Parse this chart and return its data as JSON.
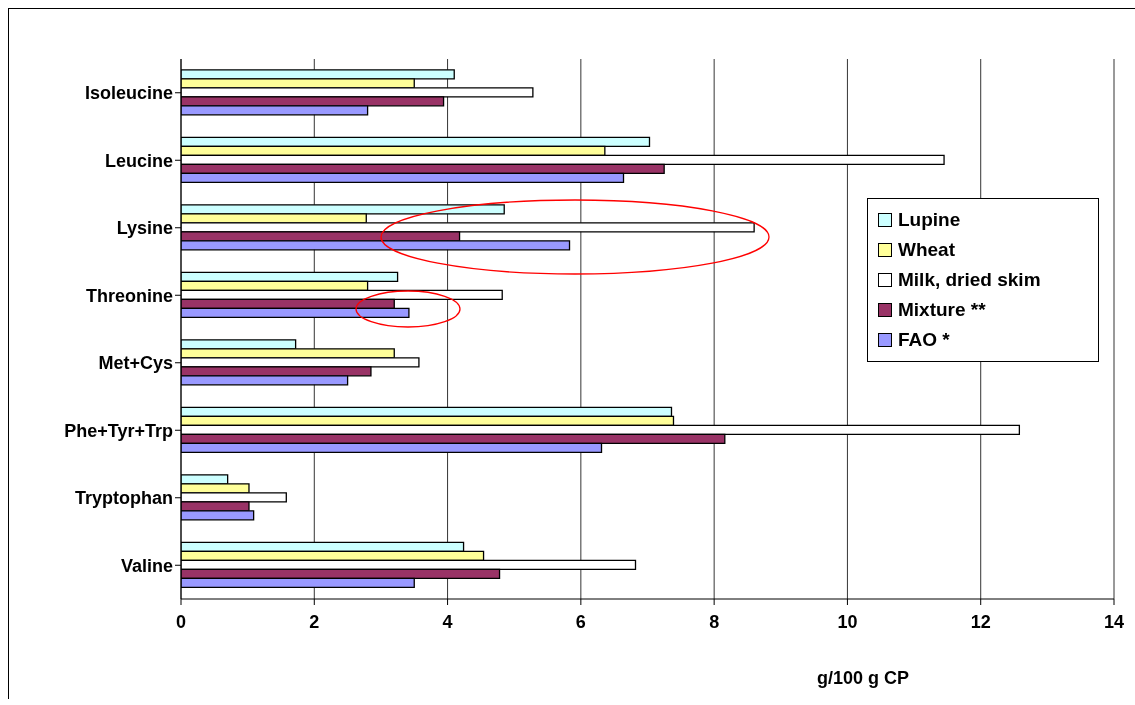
{
  "chart_data": {
    "type": "bar",
    "orientation": "horizontal",
    "xlabel": "g/100 g CP",
    "categories": [
      "Isoleucine",
      "Leucine",
      "Lysine",
      "Threonine",
      "Met+Cys",
      "Phe+Tyr+Trp",
      "Tryptophan",
      "Valine"
    ],
    "series": [
      {
        "name": "Lupine",
        "color": "#ccffff",
        "values": [
          4.1,
          7.03,
          4.85,
          3.25,
          1.72,
          7.36,
          0.7,
          4.24
        ]
      },
      {
        "name": "Wheat",
        "color": "#ffff99",
        "values": [
          3.5,
          6.36,
          2.78,
          2.8,
          3.2,
          7.39,
          1.02,
          4.54
        ]
      },
      {
        "name": "Milk, dried skim",
        "color": "#ffffff",
        "values": [
          5.28,
          11.45,
          8.6,
          4.82,
          3.57,
          12.58,
          1.58,
          6.82
        ]
      },
      {
        "name": "Mixture **",
        "color": "#993366",
        "values": [
          3.94,
          7.25,
          4.18,
          3.2,
          2.85,
          8.16,
          1.02,
          4.78
        ]
      },
      {
        "name": "FAO *",
        "color": "#9999ff",
        "values": [
          2.8,
          6.64,
          5.83,
          3.42,
          2.5,
          6.31,
          1.09,
          3.5
        ]
      }
    ],
    "xlim": [
      0,
      14
    ],
    "xticks": [
      0,
      2,
      4,
      6,
      8,
      10,
      12,
      14
    ],
    "grid": "x",
    "legend": "right"
  }
}
